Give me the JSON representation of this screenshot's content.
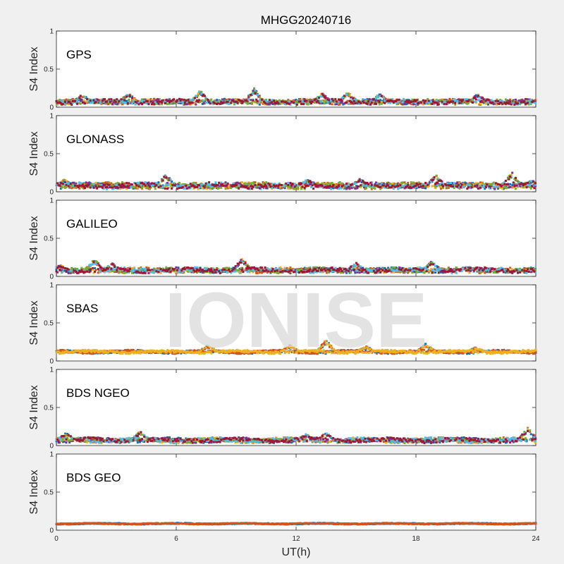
{
  "chart_data": {
    "type": "scatter",
    "title": "MHGG20240716",
    "xlabel": "UT(h)",
    "ylabel": "S4 Index",
    "xlim": [
      0,
      24
    ],
    "ylim": [
      0,
      1
    ],
    "x_ticks": [
      0,
      6,
      12,
      18,
      24
    ],
    "y_ticks": [
      0,
      0.5,
      1
    ],
    "y_tick_labels": [
      "0",
      "0.5",
      "1"
    ],
    "grid": false,
    "watermark": "IONISE",
    "panels": [
      {
        "label": "GPS",
        "colors": [
          "#0072BD",
          "#D95319",
          "#EDB120",
          "#7E2F8E",
          "#77AC30",
          "#4DBEEE",
          "#A2142F"
        ],
        "baseline": 0.07,
        "spread": 0.03,
        "features": [
          {
            "x": 9.9,
            "y": 0.25
          },
          {
            "x": 3.6,
            "y": 0.19
          },
          {
            "x": 7.2,
            "y": 0.22
          },
          {
            "x": 14.6,
            "y": 0.2
          },
          {
            "x": 13.3,
            "y": 0.19
          },
          {
            "x": 16.2,
            "y": 0.18
          },
          {
            "x": 21.1,
            "y": 0.18
          },
          {
            "x": 1.3,
            "y": 0.17
          }
        ]
      },
      {
        "label": "GLONASS",
        "colors": [
          "#0072BD",
          "#D95319",
          "#EDB120",
          "#7E2F8E",
          "#77AC30",
          "#4DBEEE",
          "#A2142F"
        ],
        "baseline": 0.08,
        "spread": 0.035,
        "features": [
          {
            "x": 5.5,
            "y": 0.23
          },
          {
            "x": 22.8,
            "y": 0.27
          },
          {
            "x": 19.0,
            "y": 0.22
          },
          {
            "x": 0.4,
            "y": 0.16
          },
          {
            "x": 15.2,
            "y": 0.17
          },
          {
            "x": 23.8,
            "y": 0.15
          },
          {
            "x": 12.6,
            "y": 0.17
          }
        ]
      },
      {
        "label": "GALILEO",
        "colors": [
          "#0072BD",
          "#D95319",
          "#EDB120",
          "#7E2F8E",
          "#77AC30",
          "#4DBEEE",
          "#A2142F"
        ],
        "baseline": 0.08,
        "spread": 0.03,
        "features": [
          {
            "x": 1.9,
            "y": 0.23
          },
          {
            "x": 9.3,
            "y": 0.24
          },
          {
            "x": 15.0,
            "y": 0.18
          },
          {
            "x": 18.8,
            "y": 0.2
          },
          {
            "x": 0.2,
            "y": 0.15
          },
          {
            "x": 2.8,
            "y": 0.17
          },
          {
            "x": 20.6,
            "y": 0.13
          }
        ]
      },
      {
        "label": "SBAS",
        "colors": [
          "#0072BD",
          "#D95319",
          "#EDB120"
        ],
        "baseline": 0.12,
        "spread": 0.02,
        "features": [
          {
            "x": 13.5,
            "y": 0.28
          },
          {
            "x": 18.5,
            "y": 0.23
          },
          {
            "x": 7.6,
            "y": 0.21
          },
          {
            "x": 15.5,
            "y": 0.2
          },
          {
            "x": 11.7,
            "y": 0.21
          },
          {
            "x": 21.0,
            "y": 0.18
          }
        ]
      },
      {
        "label": "BDS NGEO",
        "colors": [
          "#0072BD",
          "#D95319",
          "#EDB120",
          "#7E2F8E",
          "#77AC30",
          "#4DBEEE",
          "#A2142F"
        ],
        "baseline": 0.07,
        "spread": 0.03,
        "features": [
          {
            "x": 4.2,
            "y": 0.19
          },
          {
            "x": 23.6,
            "y": 0.25
          },
          {
            "x": 12.5,
            "y": 0.15
          },
          {
            "x": 0.5,
            "y": 0.17
          },
          {
            "x": 13.5,
            "y": 0.17
          }
        ]
      },
      {
        "label": "BDS GEO",
        "colors": [
          "#0072BD",
          "#D95319"
        ],
        "baseline": 0.085,
        "spread": 0.008,
        "features": []
      }
    ]
  }
}
